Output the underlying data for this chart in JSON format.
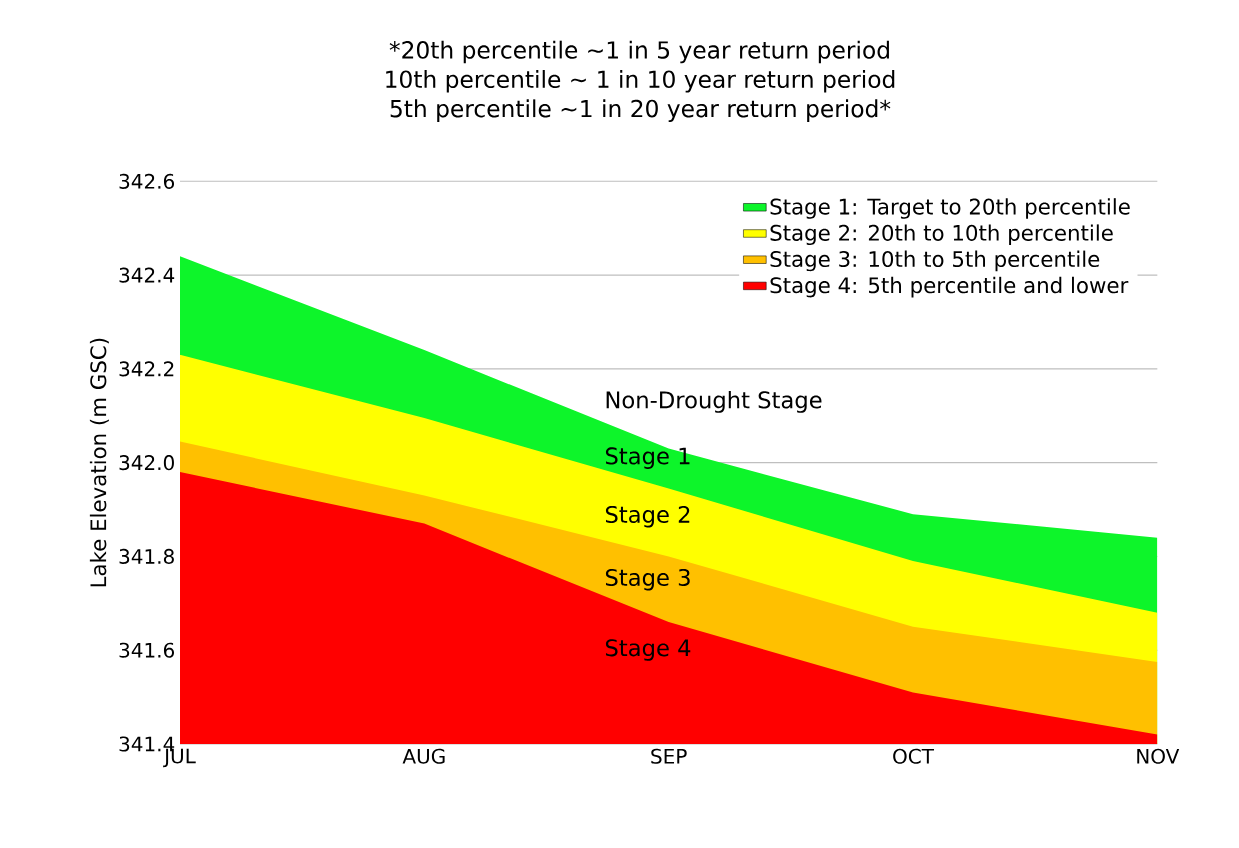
{
  "chart_data": {
    "type": "area",
    "title": "*20th percentile ~1 in 5 year return period",
    "subtitle": "10th percentile ~ 1 in 10 year return period",
    "ylabel": "Lake Elevation (m GSC)",
    "categories": [
      "JUL",
      "AUG",
      "SEP",
      "OCT",
      "NOV"
    ],
    "series": [
      {
        "name": "Stage 1: Target to 20th percentile",
        "color": "#0df52a",
        "values": [
          342.44,
          342.24,
          342.03,
          341.89,
          341.84
        ]
      },
      {
        "name": "Stage 2: 20th to 10th percentile",
        "color": "#ffff00",
        "values": [
          342.23,
          342.095,
          341.945,
          341.79,
          341.68
        ]
      },
      {
        "name": "Stage 3: 10th to 5th percentile",
        "color": "#ffc000",
        "values": [
          342.045,
          341.93,
          341.8,
          341.65,
          341.575
        ]
      },
      {
        "name": "Stage 4: 5th percentile and lower",
        "color": "#ff0000",
        "values": [
          341.98,
          341.87,
          341.66,
          341.51,
          341.42
        ]
      }
    ],
    "ylim": [
      341.4,
      342.6
    ],
    "yticks": [
      341.4,
      341.6,
      341.8,
      {
        "value": 342.0,
        "label": "342.0"
      },
      342.2,
      342.4,
      342.6
    ],
    "grid": "y",
    "legend": "top right",
    "annotations": [
      "5th percentile ~1 in 20 year return period*",
      "Non-Drought Stage",
      "Stage 1",
      "Stage 2",
      "Stage 3",
      "Stage 4"
    ]
  }
}
